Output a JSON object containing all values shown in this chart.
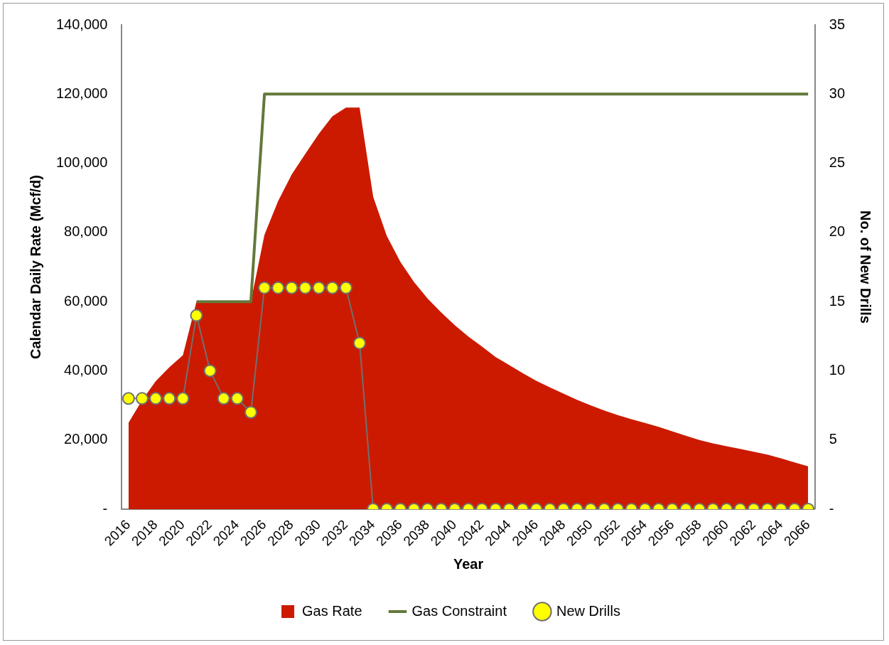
{
  "chart_data": {
    "type": "area",
    "xlabel": "Year",
    "ylabel": "Calendar Daily Rate (Mcf/d)",
    "y2label": "No. of New Drills",
    "categories": [
      "2016",
      null,
      "2018",
      null,
      "2020",
      null,
      "2022",
      null,
      "2024",
      null,
      "2026",
      null,
      "2028",
      null,
      "2030",
      null,
      "2032",
      null,
      "2034",
      null,
      "2036",
      null,
      "2038",
      null,
      "2040",
      null,
      "2042",
      null,
      "2044",
      null,
      "2046",
      null,
      "2048",
      null,
      "2050",
      null,
      "2052",
      null,
      "2054",
      null,
      "2056",
      null,
      "2058",
      null,
      "2060",
      null,
      "2062",
      null,
      "2064",
      null,
      "2066"
    ],
    "ylim": [
      0,
      140000
    ],
    "yticks": [
      {
        "value": 0,
        "label": "-"
      },
      {
        "value": 20000,
        "label": "20,000"
      },
      {
        "value": 40000,
        "label": "40,000"
      },
      {
        "value": 60000,
        "label": "60,000"
      },
      {
        "value": 80000,
        "label": "80,000"
      },
      {
        "value": 100000,
        "label": "100,000"
      },
      {
        "value": 120000,
        "label": "120,000"
      },
      {
        "value": 140000,
        "label": "140,000"
      }
    ],
    "y2lim": [
      0,
      35
    ],
    "y2ticks": [
      {
        "value": 0,
        "label": "-"
      },
      5,
      10,
      15,
      20,
      25,
      30,
      35
    ],
    "grid": false,
    "legend": "bottom",
    "series": [
      {
        "name": "Gas Rate",
        "color": "#cc1a00",
        "values": [
          25000,
          31500,
          37000,
          41000,
          44500,
          60000,
          60000,
          60000,
          60000,
          60000,
          79300,
          89000,
          96700,
          102700,
          108500,
          113600,
          116100,
          116100,
          90300,
          79000,
          71500,
          65700,
          60900,
          56900,
          53200,
          49900,
          47000,
          44000,
          41700,
          39300,
          37100,
          35200,
          33400,
          31600,
          30000,
          28500,
          27200,
          26000,
          24900,
          23800,
          22500,
          21200,
          20000,
          19000,
          18200,
          17400,
          16600,
          15800,
          14700,
          13500,
          12400
        ]
      },
      {
        "name": "Gas Constraint",
        "type": "line",
        "color": "#64783a",
        "marker": "none",
        "values": [
          null,
          null,
          null,
          null,
          null,
          60000,
          60000,
          60000,
          60000,
          60000,
          120000,
          120000,
          120000,
          120000,
          120000,
          120000,
          120000,
          120000,
          120000,
          120000,
          120000,
          120000,
          120000,
          120000,
          120000,
          120000,
          120000,
          120000,
          120000,
          120000,
          120000,
          120000,
          120000,
          120000,
          120000,
          120000,
          120000,
          120000,
          120000,
          120000,
          120000,
          120000,
          120000,
          120000,
          120000,
          120000,
          120000,
          120000,
          120000,
          120000,
          120000
        ]
      },
      {
        "name": "New Drills",
        "type": "line",
        "axis": "y2",
        "color": "#ffff00",
        "marker": "circle",
        "values": [
          8,
          8,
          8,
          8,
          8,
          14,
          10,
          8,
          8,
          7,
          16,
          16,
          16,
          16,
          16,
          16,
          16,
          12,
          0,
          0,
          0,
          0,
          0,
          0,
          0,
          0,
          0,
          0,
          0,
          0,
          0,
          0,
          0,
          0,
          0,
          0,
          0,
          0,
          0,
          0,
          0,
          0,
          0,
          0,
          0,
          0,
          0,
          0,
          0,
          0,
          0
        ]
      }
    ]
  }
}
